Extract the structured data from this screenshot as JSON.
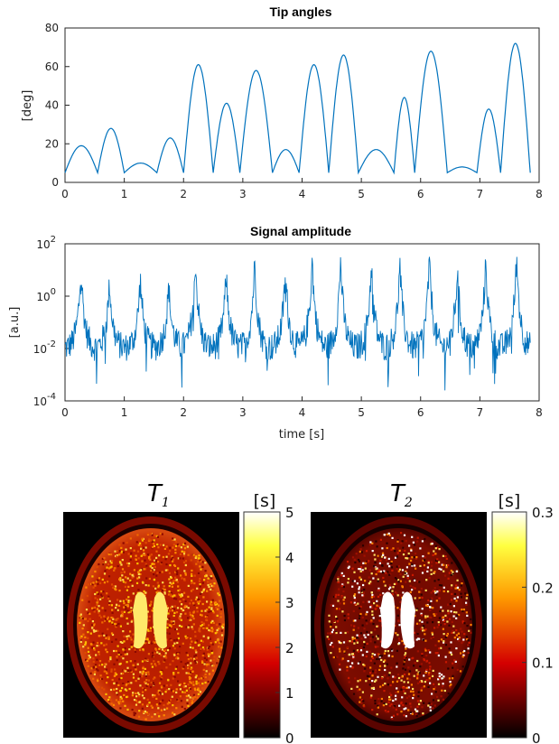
{
  "chart_data": [
    {
      "type": "line",
      "title": "Tip angles",
      "xlabel": "",
      "ylabel": "[deg]",
      "xlim": [
        0,
        8
      ],
      "ylim": [
        0,
        80
      ],
      "xticks": [
        "0",
        "1",
        "2",
        "3",
        "4",
        "5",
        "6",
        "7",
        "8"
      ],
      "yticks": [
        "0",
        "20",
        "40",
        "60",
        "80"
      ],
      "color": "#0072bd",
      "lobes": [
        {
          "x0": 0.0,
          "x1": 0.55,
          "peak": 19
        },
        {
          "x0": 0.55,
          "x1": 1.0,
          "peak": 28
        },
        {
          "x0": 1.0,
          "x1": 1.55,
          "peak": 10
        },
        {
          "x0": 1.55,
          "x1": 2.0,
          "peak": 23
        },
        {
          "x0": 2.0,
          "x1": 2.5,
          "peak": 61
        },
        {
          "x0": 2.5,
          "x1": 2.95,
          "peak": 41
        },
        {
          "x0": 2.95,
          "x1": 3.5,
          "peak": 58
        },
        {
          "x0": 3.5,
          "x1": 3.95,
          "peak": 17
        },
        {
          "x0": 3.95,
          "x1": 4.45,
          "peak": 61
        },
        {
          "x0": 4.45,
          "x1": 4.95,
          "peak": 66
        },
        {
          "x0": 4.95,
          "x1": 5.55,
          "peak": 17
        },
        {
          "x0": 5.55,
          "x1": 5.9,
          "peak": 44
        },
        {
          "x0": 5.9,
          "x1": 6.45,
          "peak": 68
        },
        {
          "x0": 6.45,
          "x1": 6.95,
          "peak": 8
        },
        {
          "x0": 6.95,
          "x1": 7.35,
          "peak": 38
        },
        {
          "x0": 7.35,
          "x1": 7.85,
          "peak": 72
        }
      ],
      "floor": 5
    },
    {
      "type": "line",
      "title": "Signal amplitude",
      "xlabel": "time [s]",
      "ylabel": "[a.u.]",
      "xlim": [
        0,
        8
      ],
      "ylim": [
        0.0001,
        100
      ],
      "yscale": "log",
      "xticks": [
        "0",
        "1",
        "2",
        "3",
        "4",
        "5",
        "6",
        "7",
        "8"
      ],
      "yticks": [
        {
          "base": "10",
          "exp": "2"
        },
        {
          "base": "10",
          "exp": "0"
        },
        {
          "base": "10",
          "exp": "-2"
        },
        {
          "base": "10",
          "exp": "-4"
        }
      ],
      "color": "#0072bd",
      "spikes_x": [
        0.27,
        0.75,
        1.27,
        1.75,
        2.2,
        2.72,
        3.2,
        3.72,
        4.17,
        4.65,
        5.17,
        5.65,
        6.15,
        6.62,
        7.1,
        7.62
      ],
      "spikes_peak": [
        8,
        2,
        3,
        1.5,
        15,
        4,
        12,
        6,
        15,
        14,
        12,
        10,
        18,
        6,
        14,
        22
      ]
    },
    {
      "type": "heatmap",
      "title": "T",
      "title_sub": "1",
      "colorbar_unit": "[s]",
      "colorbar_ticks": [
        "0",
        "1",
        "2",
        "3",
        "4",
        "5"
      ],
      "clim": [
        0,
        5
      ],
      "colormap": "hot"
    },
    {
      "type": "heatmap",
      "title": "T",
      "title_sub": "2",
      "colorbar_unit": "[s]",
      "colorbar_ticks": [
        "0",
        "0.1",
        "0.2",
        "0.3"
      ],
      "clim": [
        0,
        0.3
      ],
      "colormap": "hot"
    }
  ]
}
